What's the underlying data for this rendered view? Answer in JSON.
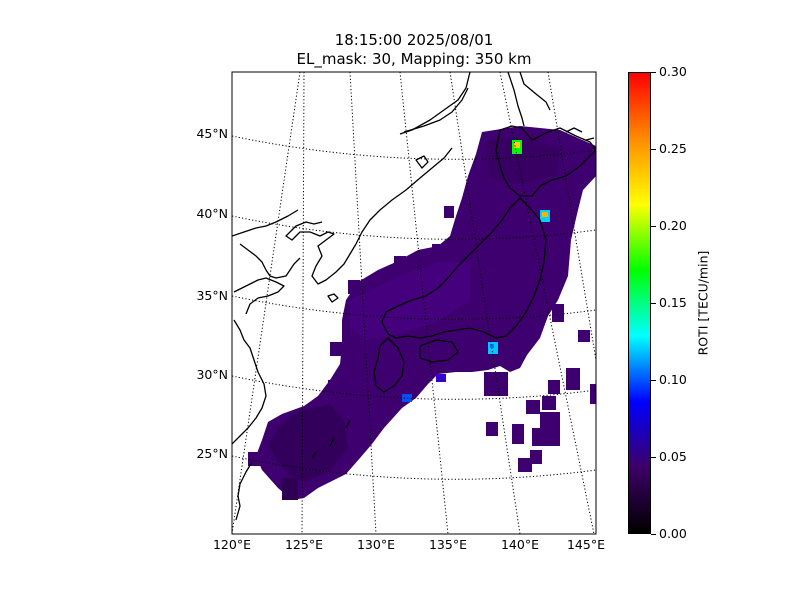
{
  "title": {
    "line1": "18:15:00 2025/08/01",
    "line2": "EL_mask: 30, Mapping: 350 km"
  },
  "map": {
    "lon_range": [
      120,
      145
    ],
    "lat_range": [
      20,
      49
    ],
    "lat_ticks": [
      "45°N",
      "40°N",
      "35°N",
      "30°N",
      "25°N"
    ],
    "lon_ticks": [
      "120°E",
      "125°E",
      "130°E",
      "135°E",
      "140°E",
      "145°E"
    ],
    "gridlines": "dotted",
    "coastline_color": "#000000",
    "background_color": "#ffffff"
  },
  "colorbar": {
    "label": "ROTI [TECU/min]",
    "min": 0.0,
    "max": 0.3,
    "ticks": [
      "0.00",
      "0.05",
      "0.10",
      "0.15",
      "0.20",
      "0.25",
      "0.30"
    ],
    "colormap": "nipy_spectral-like",
    "colors": [
      "#000000",
      "#3d0066",
      "#0000ff",
      "#00ffff",
      "#00ff00",
      "#ffff00",
      "#ff8c00",
      "#ff0000"
    ]
  },
  "roti_field": {
    "dominant_value": 0.04,
    "dominant_color": "#3f006f",
    "hotspots": [
      {
        "lon": 139.9,
        "lat": 44.4,
        "value": 0.2
      },
      {
        "lon": 141.8,
        "lat": 40.0,
        "value": 0.16
      },
      {
        "lon": 138.2,
        "lat": 31.6,
        "value": 0.1
      },
      {
        "lon": 132.2,
        "lat": 28.8,
        "value": 0.07
      }
    ]
  }
}
